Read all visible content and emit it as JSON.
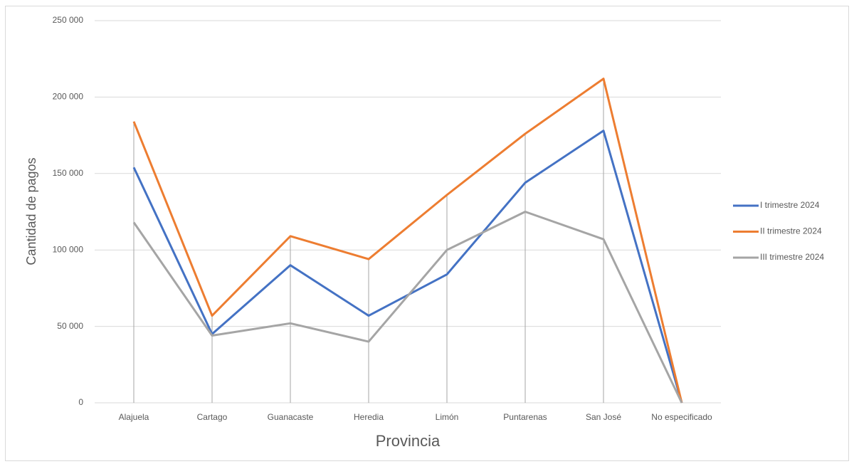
{
  "chart_data": {
    "type": "line",
    "x_label": "Provincia",
    "y_label": "Cantidad de pagos",
    "categories": [
      "Alajuela",
      "Cartago",
      "Guanacaste",
      "Heredia",
      "Limón",
      "Puntarenas",
      "San José",
      "No especificado"
    ],
    "series": [
      {
        "name": "I trimestre 2024",
        "color": "#4472c4",
        "values": [
          154000,
          45000,
          90000,
          57000,
          84000,
          144000,
          178000,
          0
        ]
      },
      {
        "name": "II trimestre 2024",
        "color": "#ed7d31",
        "values": [
          184000,
          57000,
          109000,
          94000,
          136000,
          176000,
          212000,
          0
        ]
      },
      {
        "name": "III trimestre 2024",
        "color": "#a5a5a5",
        "values": [
          118000,
          44000,
          52000,
          40000,
          100000,
          125000,
          107000,
          0
        ]
      }
    ],
    "ylim": [
      0,
      250000
    ],
    "yticks": [
      0,
      {
        "value": 50000,
        "label": "50 000"
      },
      {
        "value": 100000,
        "label": "100 000"
      },
      {
        "value": 150000,
        "label": "150 000"
      },
      {
        "value": 200000,
        "label": "200 000"
      },
      {
        "value": 250000,
        "label": "250 000"
      }
    ],
    "grid": true,
    "legend": "right",
    "drop_lines": true
  }
}
